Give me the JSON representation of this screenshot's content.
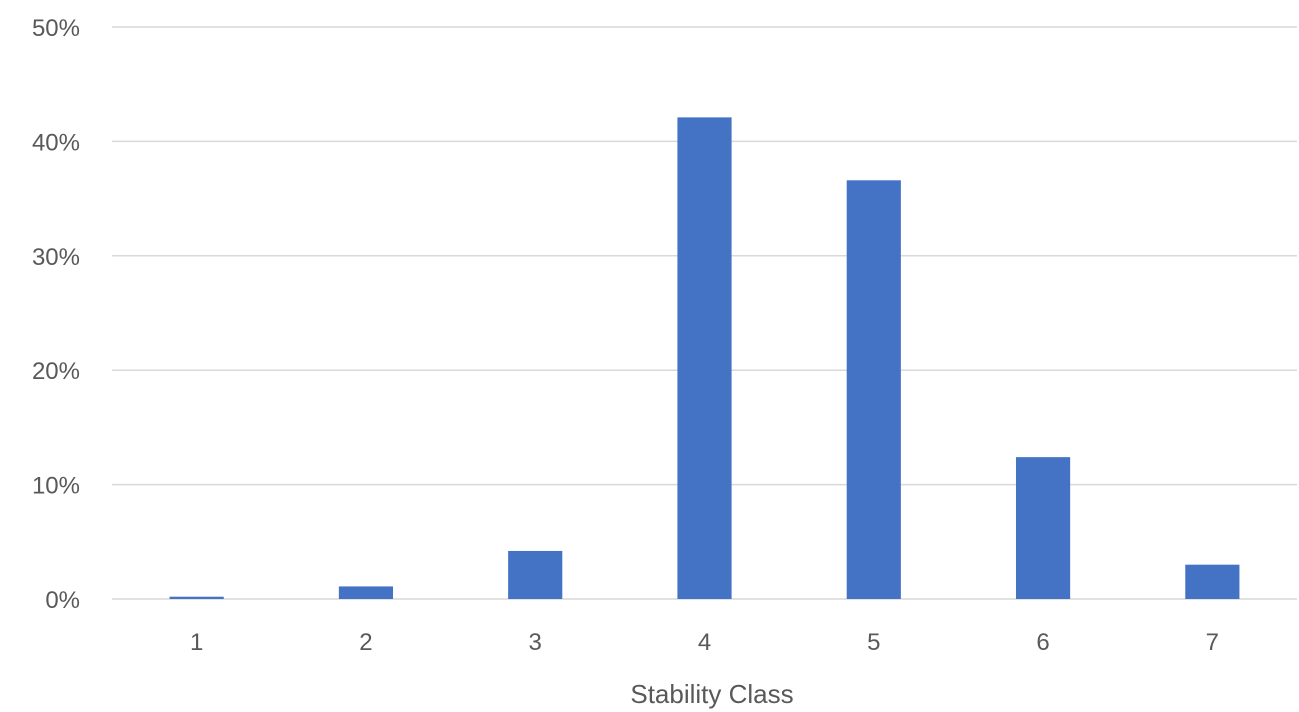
{
  "chart_data": {
    "type": "bar",
    "title": "",
    "xlabel": "Stability Class",
    "ylabel": "",
    "categories": [
      "1",
      "2",
      "3",
      "4",
      "5",
      "6",
      "7"
    ],
    "values": [
      0.2,
      1.1,
      4.2,
      42.1,
      36.6,
      12.4,
      3.0
    ],
    "ylim": [
      0,
      50
    ],
    "y_ticks": [
      0,
      10,
      20,
      30,
      40,
      50
    ],
    "y_tick_labels": [
      "0%",
      "10%",
      "20%",
      "30%",
      "40%",
      "50%"
    ],
    "grid": true,
    "legend": "none",
    "colors": {
      "bar": "#4472C4",
      "grid": "#D9D9D9",
      "text": "#595959"
    }
  }
}
